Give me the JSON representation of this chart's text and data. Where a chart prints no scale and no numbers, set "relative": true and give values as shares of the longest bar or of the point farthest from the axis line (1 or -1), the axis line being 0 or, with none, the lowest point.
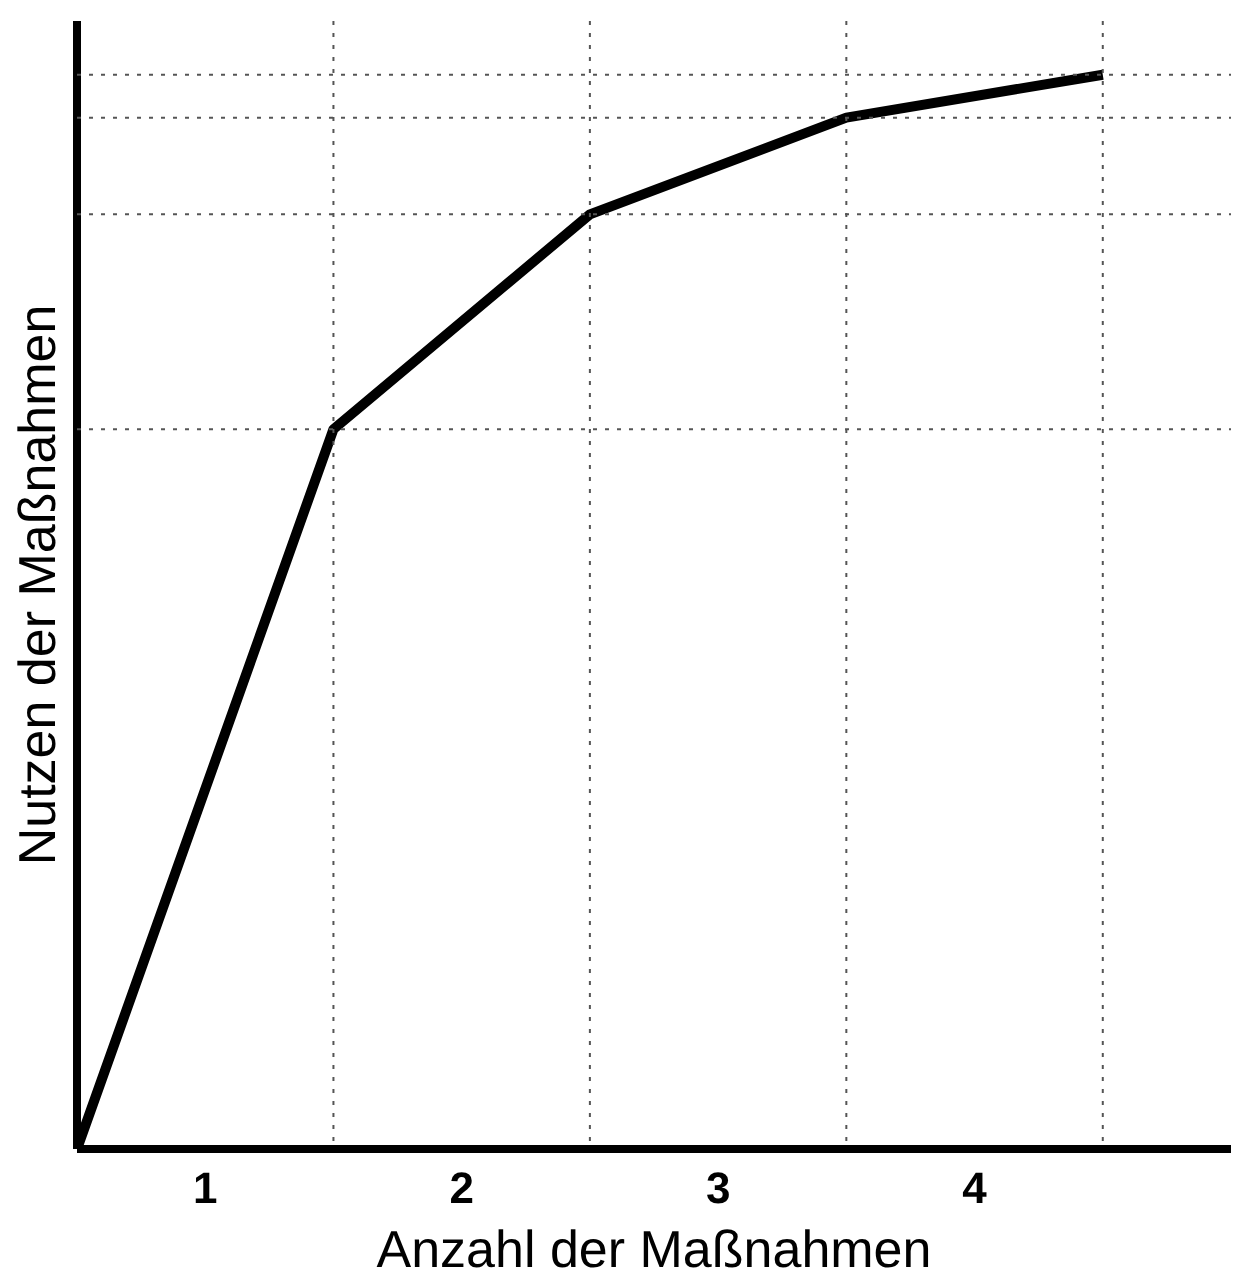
{
  "chart_data": {
    "type": "line",
    "relative": true,
    "xlabel": "Anzahl der Maßnahmen",
    "ylabel": "Nutzen der Maßnahmen",
    "x": [
      0,
      1,
      2,
      3,
      4
    ],
    "series": [
      {
        "color": "#000000",
        "values": [
          0,
          0.67,
          0.87,
          0.96,
          1.0
        ]
      }
    ],
    "xlim": [
      0,
      4.5
    ],
    "xticks": [
      {
        "value": 0.5,
        "label": "1"
      },
      {
        "value": 1.5,
        "label": "2"
      },
      {
        "value": 2.5,
        "label": "3"
      },
      {
        "value": 3.5,
        "label": "4"
      }
    ],
    "ref_lines": [
      {
        "axis": "x",
        "value": 1,
        "line_style": "dotted",
        "color": "#555555"
      },
      {
        "axis": "x",
        "value": 2,
        "line_style": "dotted",
        "color": "#555555"
      },
      {
        "axis": "x",
        "value": 3,
        "line_style": "dotted",
        "color": "#555555"
      },
      {
        "axis": "x",
        "value": 4,
        "line_style": "dotted",
        "color": "#555555"
      },
      {
        "axis": "y",
        "value": 0.67,
        "line_style": "dotted",
        "color": "#555555"
      },
      {
        "axis": "y",
        "value": 0.87,
        "line_style": "dotted",
        "color": "#555555"
      },
      {
        "axis": "y",
        "value": 0.96,
        "line_style": "dotted",
        "color": "#555555"
      },
      {
        "axis": "y",
        "value": 1.0,
        "line_style": "dotted",
        "color": "#555555"
      }
    ],
    "grid": false,
    "marker": "none",
    "line_style": "solid"
  }
}
